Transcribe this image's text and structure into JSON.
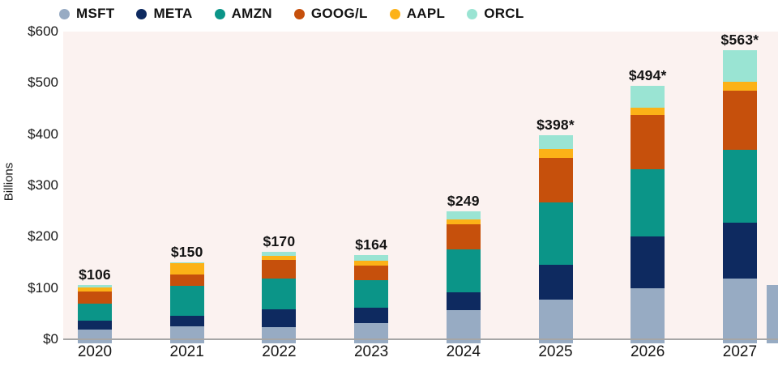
{
  "chart_data": {
    "type": "bar",
    "variant": "stacked",
    "unit": "USD billions",
    "ylabel": "Billions",
    "ylim": [
      0,
      600
    ],
    "grid": false,
    "legend_position": "top-left",
    "plot_background": "#fbf2f0",
    "axis_line_color": "#a6a6a6",
    "categories": [
      "2020",
      "2021",
      "2022",
      "2023",
      "2024",
      "2025",
      "2026",
      "2027"
    ],
    "series": [
      {
        "name": "MSFT",
        "color": "#97abc3",
        "values": [
          19,
          25,
          23,
          32,
          57,
          77,
          99,
          118
        ]
      },
      {
        "name": "META",
        "color": "#0e2a60",
        "values": [
          18,
          21,
          36,
          29,
          35,
          68,
          101,
          109
        ]
      },
      {
        "name": "AMZN",
        "color": "#0b9588",
        "values": [
          33,
          58,
          60,
          54,
          84,
          122,
          131,
          143
        ]
      },
      {
        "name": "GOOG/L",
        "color": "#c6500c",
        "values": [
          23,
          22,
          35,
          29,
          48,
          86,
          106,
          115
        ]
      },
      {
        "name": "AAPL",
        "color": "#fcb217",
        "values": [
          8,
          23,
          8,
          9,
          10,
          18,
          15,
          17
        ]
      },
      {
        "name": "ORCL",
        "color": "#9ae4d3",
        "values": [
          5,
          1,
          8,
          11,
          15,
          27,
          42,
          61
        ]
      }
    ],
    "totals": [
      "$106",
      "$150",
      "$170",
      "$164",
      "$249",
      "$398*",
      "$494*",
      "$563*"
    ],
    "y_ticks": [
      {
        "label": "$0",
        "value": 0
      },
      {
        "label": "$100",
        "value": 100
      },
      {
        "label": "$200",
        "value": 200
      },
      {
        "label": "$300",
        "value": 300
      },
      {
        "label": "$400",
        "value": 400
      },
      {
        "label": "$500",
        "value": 500
      },
      {
        "label": "$600",
        "value": 600
      }
    ],
    "edge_partial_bar": {
      "present": true,
      "series": "MSFT",
      "approx_value": 106
    }
  }
}
